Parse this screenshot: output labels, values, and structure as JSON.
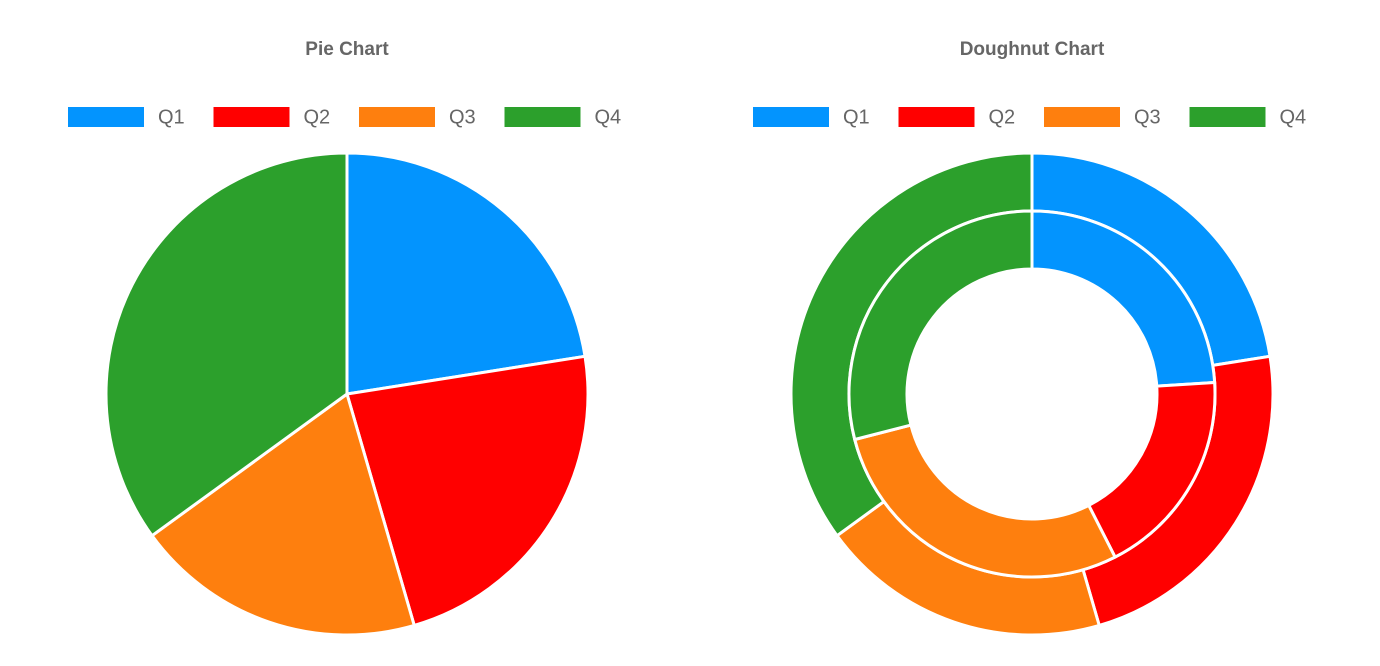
{
  "chart_data": [
    {
      "type": "pie",
      "title": "Pie Chart",
      "categories": [
        "Q1",
        "Q2",
        "Q3",
        "Q4"
      ],
      "colors": [
        "#0394fe",
        "#ff0000",
        "#fe7f0e",
        "#2ca02c"
      ],
      "values": [
        22.5,
        23,
        19.5,
        35
      ]
    },
    {
      "type": "doughnut",
      "title": "Doughnut Chart",
      "categories": [
        "Q1",
        "Q2",
        "Q3",
        "Q4"
      ],
      "colors": [
        "#0394fe",
        "#ff0000",
        "#fe7f0e",
        "#2ca02c"
      ],
      "series": [
        {
          "values": [
            22.5,
            23,
            19.5,
            35
          ]
        },
        {
          "values": [
            24,
            18.5,
            28.5,
            29
          ]
        }
      ]
    }
  ]
}
